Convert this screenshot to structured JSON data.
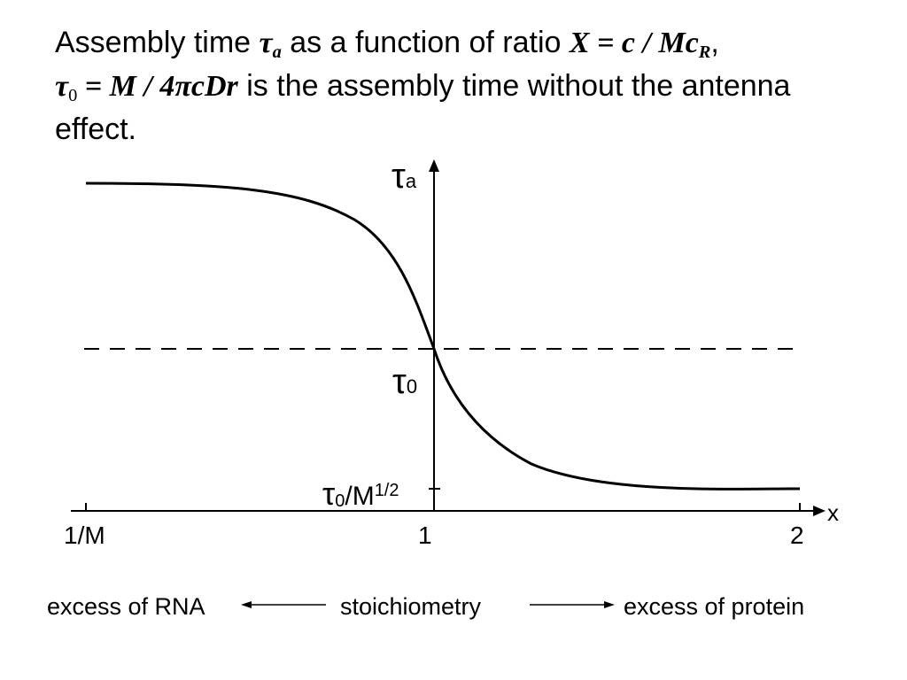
{
  "title": {
    "part1": "Assembly time ",
    "tau_a": "τ",
    "tau_a_sub": "a",
    "part2": " as a function of ratio ",
    "x_eq": "X = c / Mc",
    "x_eq_sub": "R",
    "comma": ",",
    "tau0_eq": "τ",
    "tau0_eq_sub": "0",
    "tau0_rhs": " = M / 4πcDr",
    "part3": " is the assembly time without the antenna effect."
  },
  "diagram": {
    "y_axis_label": "τ",
    "y_axis_label_sub": "a",
    "x_axis_label": "x",
    "tau0_label": "τ",
    "tau0_label_sub": "0",
    "tau0m_label": "τ",
    "tau0m_label_sub": "0",
    "tau0m_label_rest": "/M",
    "tau0m_label_sup": "1/2",
    "tick_1M": "1/M",
    "tick_1": "1",
    "tick_2": "2"
  },
  "caption": {
    "left": "excess of RNA",
    "center": "stoichiometry",
    "right": "excess of protein"
  }
}
